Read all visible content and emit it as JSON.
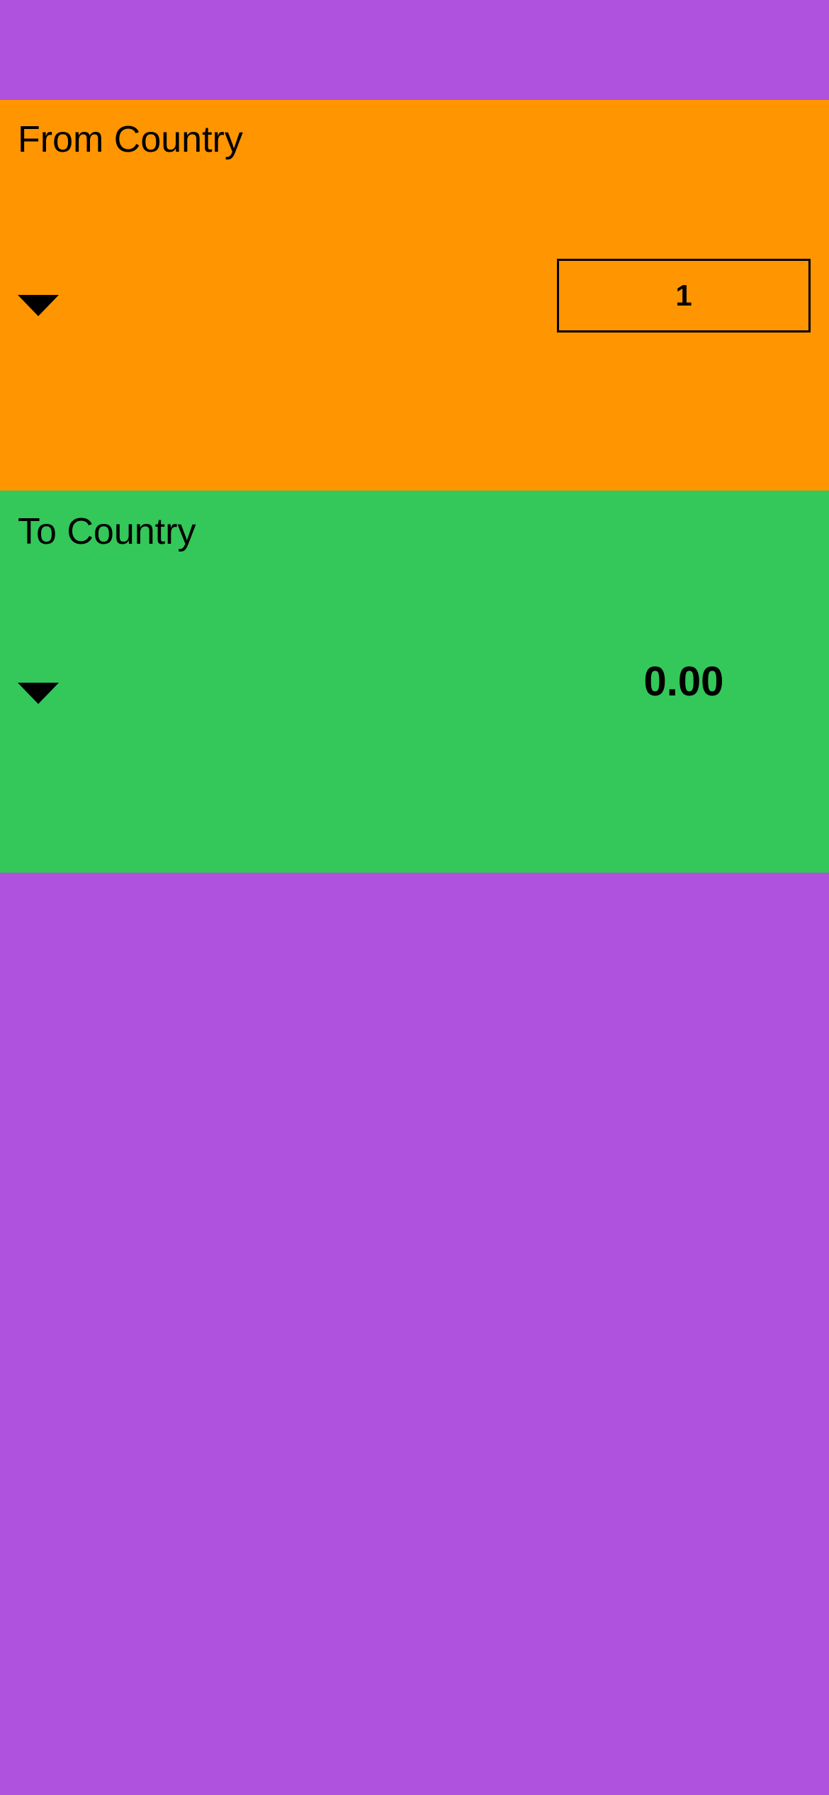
{
  "colors": {
    "background": "#AF52DE",
    "from_section": "#FF9500",
    "to_section": "#34C759",
    "text": "#000000"
  },
  "from": {
    "title": "From Country",
    "dropdown_icon": "triangle-down-icon",
    "amount_value": "1"
  },
  "to": {
    "title": "To Country",
    "dropdown_icon": "triangle-down-icon",
    "converted_value": "0.00"
  }
}
